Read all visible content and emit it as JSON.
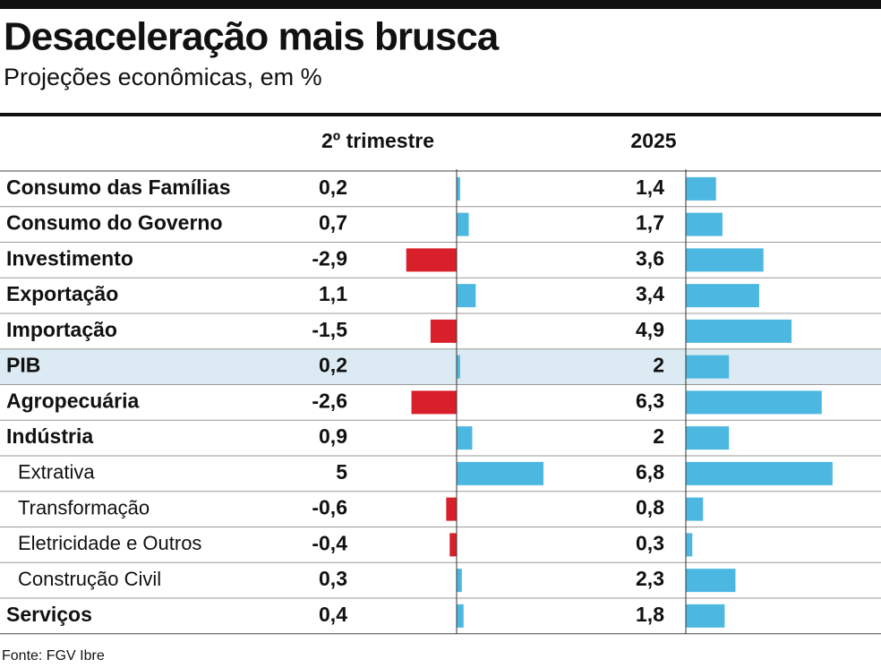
{
  "chart_data": {
    "type": "bar",
    "title": "Desaceleração mais brusca",
    "subtitle": "Projeções econômicas, em %",
    "categories": [
      "Consumo das Famílias",
      "Consumo do Governo",
      "Investimento",
      "Exportação",
      "Importação",
      "PIB",
      "Agropecuária",
      "Indústria",
      "Extrativa",
      "Transformação",
      "Eletricidade e Outros",
      "Construção Civil",
      "Serviços"
    ],
    "series": [
      {
        "name": "2º trimestre",
        "color": "#4cb8e2",
        "negative_color": "#d7202a",
        "values": [
          0.2,
          0.7,
          -2.9,
          1.1,
          -1.5,
          0.2,
          -2.6,
          0.9,
          5,
          -0.6,
          -0.4,
          0.3,
          0.4
        ],
        "value_labels": [
          "0,2",
          "0,7",
          "-2,9",
          "1,1",
          "-1,5",
          "0,2",
          "-2,6",
          "0,9",
          "5",
          "-0,6",
          "-0,4",
          "0,3",
          "0,4"
        ]
      },
      {
        "name": "2025",
        "color": "#4cb8e2",
        "negative_color": "#d7202a",
        "values": [
          1.4,
          1.7,
          3.6,
          3.4,
          4.9,
          2,
          6.3,
          2,
          6.8,
          0.8,
          0.3,
          2.3,
          1.8
        ],
        "value_labels": [
          "1,4",
          "1,7",
          "3,6",
          "3,4",
          "4,9",
          "2",
          "6,3",
          "2",
          "6,8",
          "0,8",
          "0,3",
          "2,3",
          "1,8"
        ]
      }
    ],
    "source": "Fonte: FGV Ibre"
  }
}
